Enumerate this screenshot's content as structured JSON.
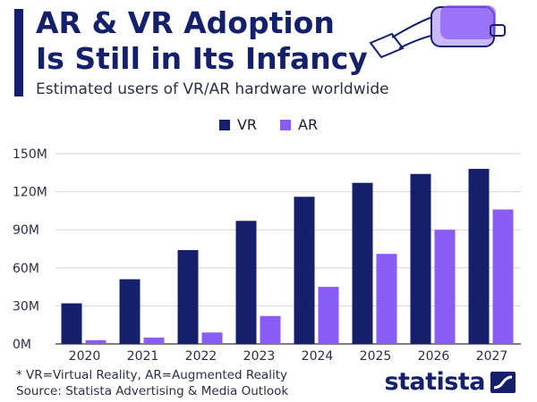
{
  "header": {
    "title_line1": "AR & VR Adoption",
    "title_line2": "Is Still in Its Infancy",
    "subtitle": "Estimated users of VR/AR hardware worldwide"
  },
  "legend": {
    "vr": "VR",
    "ar": "AR"
  },
  "colors": {
    "vr": "#14206b",
    "ar": "#8a5cf6",
    "accent": "#14206b"
  },
  "chart_data": {
    "type": "bar",
    "categories": [
      "2020",
      "2021",
      "2022",
      "2023",
      "2024",
      "2025",
      "2026",
      "2027"
    ],
    "series": [
      {
        "name": "VR",
        "values": [
          32,
          51,
          74,
          97,
          116,
          127,
          134,
          138
        ]
      },
      {
        "name": "AR",
        "values": [
          3,
          5,
          9,
          22,
          45,
          71,
          90,
          106
        ]
      }
    ],
    "y_ticks": [
      "0M",
      "30M",
      "60M",
      "90M",
      "120M",
      "150M"
    ],
    "ylim": [
      0,
      150
    ],
    "grid": true,
    "legend_position": "top-center"
  },
  "footer": {
    "footnote": "* VR=Virtual Reality, AR=Augmented Reality",
    "source": "Source: Statista Advertising & Media Outlook",
    "brand": "statista"
  },
  "icons": {
    "headset": "vr-headset-icon",
    "brand_mark": "statista-logo-icon"
  }
}
